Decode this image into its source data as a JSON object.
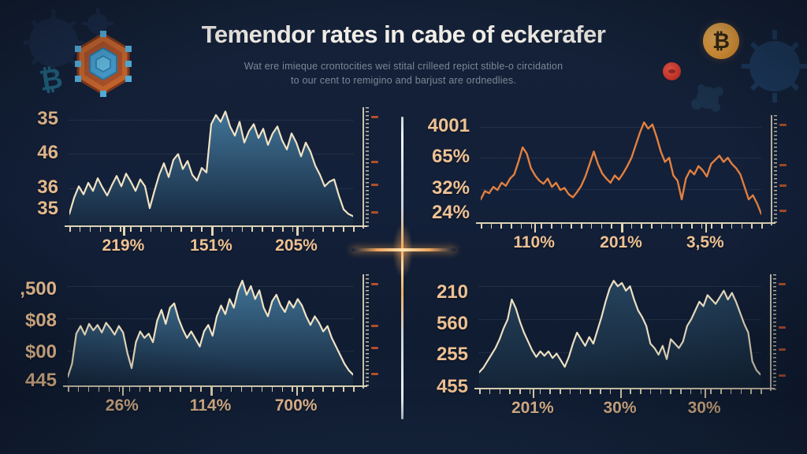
{
  "header": {
    "title": "Temendor rates in cabe of eckerafer",
    "subtitle_line1": "Wat ere imieque crontocities wei stital crilleed repict stible-o circidation",
    "subtitle_line2": "to our cent to remigino and barjust are ordnedlies."
  },
  "icons": {
    "coin_symbol": "₿",
    "crypto_glyph": "₿"
  },
  "colors": {
    "background": "#132039",
    "label_orange": "#eec193",
    "axis_cream": "#e9ddbe",
    "accent_orange_line": "#e2803f",
    "area_fill_top": "#44799d",
    "area_fill_bottom": "#16293f",
    "dark_area_fill_top": "#27455f",
    "dark_area_fill_bottom": "#142639",
    "title_white": "#f3efe8",
    "subtitle_grey": "#7e8798",
    "coin_orange": "#eea23c",
    "red_badge": "#d23a2d",
    "hex_orange": "#cf6a2f",
    "hex_blue": "#4aa6d9"
  },
  "chart_data": [
    {
      "id": "top-left",
      "type": "area",
      "title": "",
      "y_tick_labels": [
        "35",
        "46",
        "36",
        "35"
      ],
      "x_tick_labels": [
        "219%",
        "151%",
        "205%"
      ],
      "line_color": "#f1e3c4",
      "fill_top": "#44799d",
      "fill_bottom": "#16293f",
      "ylim": [
        0,
        100
      ],
      "values": [
        10,
        24,
        34,
        27,
        37,
        30,
        41,
        33,
        26,
        35,
        43,
        34,
        45,
        38,
        30,
        40,
        34,
        15,
        30,
        44,
        54,
        42,
        57,
        62,
        49,
        56,
        44,
        39,
        50,
        46,
        88,
        96,
        90,
        99,
        86,
        78,
        90,
        72,
        82,
        88,
        76,
        84,
        70,
        80,
        86,
        74,
        66,
        80,
        72,
        60,
        72,
        64,
        52,
        44,
        34,
        38,
        40,
        26,
        14,
        10,
        8
      ]
    },
    {
      "id": "top-right",
      "type": "line",
      "title": "",
      "y_tick_labels": [
        "4001",
        "65%",
        "32%",
        "24%"
      ],
      "x_tick_labels": [
        "110%",
        "201%",
        "3,5%"
      ],
      "line_color": "#e2803f",
      "ylim": [
        0,
        100
      ],
      "values": [
        22,
        30,
        28,
        34,
        31,
        38,
        35,
        42,
        46,
        58,
        72,
        66,
        52,
        45,
        40,
        37,
        42,
        34,
        38,
        31,
        33,
        27,
        24,
        29,
        35,
        44,
        56,
        68,
        56,
        47,
        42,
        38,
        45,
        41,
        47,
        54,
        62,
        74,
        86,
        96,
        90,
        94,
        82,
        68,
        58,
        62,
        45,
        40,
        22,
        42,
        50,
        46,
        54,
        50,
        44,
        56,
        60,
        64,
        58,
        62,
        56,
        52,
        46,
        34,
        22,
        26,
        18,
        8
      ]
    },
    {
      "id": "bottom-left",
      "type": "area",
      "title": "",
      "y_tick_labels": [
        ",500",
        "$08",
        "$00",
        "445"
      ],
      "x_tick_labels": [
        "26%",
        "114%",
        "700%"
      ],
      "line_color": "#f1e3c4",
      "fill_top": "#44799d",
      "fill_bottom": "#16293f",
      "ylim": [
        0,
        100
      ],
      "values": [
        8,
        20,
        48,
        55,
        47,
        57,
        51,
        56,
        49,
        58,
        53,
        47,
        55,
        49,
        30,
        16,
        40,
        50,
        44,
        48,
        40,
        60,
        70,
        57,
        72,
        76,
        62,
        52,
        44,
        50,
        43,
        36,
        50,
        56,
        46,
        64,
        74,
        66,
        80,
        72,
        88,
        97,
        84,
        92,
        80,
        88,
        72,
        64,
        78,
        84,
        74,
        68,
        78,
        72,
        80,
        74,
        64,
        56,
        64,
        58,
        50,
        55,
        44,
        36,
        28,
        20,
        14,
        10
      ]
    },
    {
      "id": "bottom-right",
      "type": "area",
      "title": "",
      "y_tick_labels": [
        "210",
        "560",
        "255",
        "455"
      ],
      "x_tick_labels": [
        "201%",
        "30%",
        "30%"
      ],
      "line_color": "#ecdfc2",
      "fill_top": "#27455f",
      "fill_bottom": "#142639",
      "ylim": [
        0,
        100
      ],
      "values": [
        14,
        18,
        24,
        30,
        36,
        44,
        54,
        62,
        80,
        72,
        60,
        50,
        42,
        34,
        28,
        33,
        29,
        33,
        27,
        31,
        25,
        19,
        28,
        40,
        50,
        44,
        38,
        46,
        40,
        52,
        64,
        78,
        90,
        97,
        92,
        95,
        88,
        92,
        80,
        70,
        64,
        56,
        40,
        36,
        30,
        38,
        26,
        44,
        40,
        36,
        42,
        56,
        62,
        70,
        78,
        74,
        84,
        80,
        76,
        82,
        88,
        80,
        86,
        78,
        68,
        58,
        50,
        24,
        16,
        12
      ]
    }
  ]
}
